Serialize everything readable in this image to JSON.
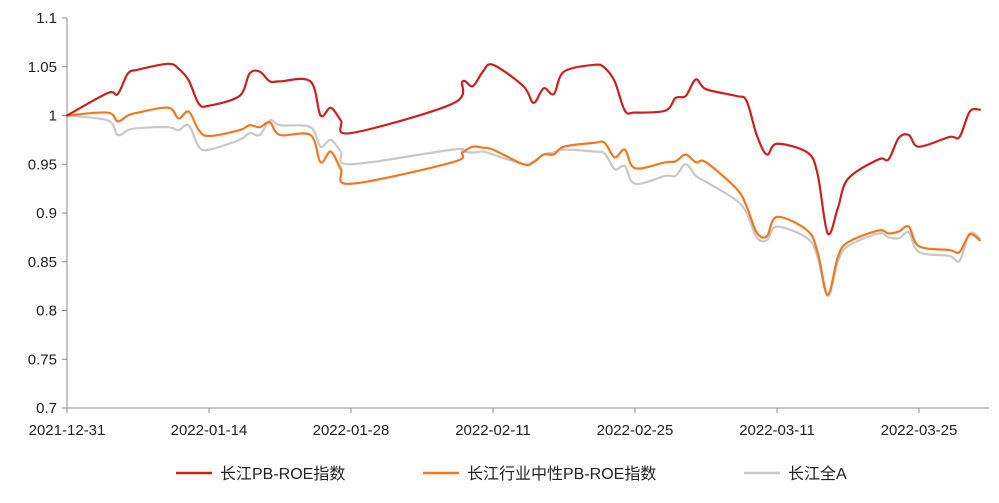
{
  "chart_data": {
    "type": "line",
    "title": "",
    "xlabel": "",
    "ylabel": "",
    "ylim": [
      0.7,
      1.1
    ],
    "y_ticks": [
      0.7,
      0.75,
      0.8,
      0.85,
      0.9,
      0.95,
      1,
      1.05,
      1.1
    ],
    "y_tick_labels": [
      "0.7",
      "0.75",
      "0.8",
      "0.85",
      "0.9",
      "0.95",
      "1",
      "1.05",
      "1.1"
    ],
    "x_ticks": [
      "2021-12-31",
      "2022-01-14",
      "2022-01-28",
      "2022-02-11",
      "2022-02-25",
      "2022-03-11",
      "2022-03-25"
    ],
    "xlim": [
      "2021-12-31",
      "2022-04-01"
    ],
    "grid": false,
    "legend_position": "bottom",
    "series": [
      {
        "name": "长江PB-ROE指数",
        "color": "#cc1f1f",
        "points": [
          [
            "2021-12-31",
            1.0
          ],
          [
            "2022-01-04",
            1.023
          ],
          [
            "2022-01-05",
            1.022
          ],
          [
            "2022-01-06",
            1.043
          ],
          [
            "2022-01-07",
            1.047
          ],
          [
            "2022-01-10",
            1.053
          ],
          [
            "2022-01-11",
            1.048
          ],
          [
            "2022-01-12",
            1.036
          ],
          [
            "2022-01-13",
            1.012
          ],
          [
            "2022-01-14",
            1.01
          ],
          [
            "2022-01-17",
            1.02
          ],
          [
            "2022-01-18",
            1.043
          ],
          [
            "2022-01-19",
            1.045
          ],
          [
            "2022-01-20",
            1.035
          ],
          [
            "2022-01-21",
            1.035
          ],
          [
            "2022-01-24",
            1.035
          ],
          [
            "2022-01-25",
            1.0
          ],
          [
            "2022-01-26",
            1.008
          ],
          [
            "2022-01-27",
            0.995
          ],
          [
            "2022-01-28",
            0.982
          ],
          [
            "2022-02-07",
            1.012
          ],
          [
            "2022-02-08",
            1.035
          ],
          [
            "2022-02-09",
            1.03
          ],
          [
            "2022-02-10",
            1.045
          ],
          [
            "2022-02-11",
            1.052
          ],
          [
            "2022-02-14",
            1.03
          ],
          [
            "2022-02-15",
            1.013
          ],
          [
            "2022-02-16",
            1.028
          ],
          [
            "2022-02-17",
            1.022
          ],
          [
            "2022-02-18",
            1.045
          ],
          [
            "2022-02-21",
            1.052
          ],
          [
            "2022-02-22",
            1.049
          ],
          [
            "2022-02-23",
            1.035
          ],
          [
            "2022-02-24",
            1.005
          ],
          [
            "2022-02-25",
            1.003
          ],
          [
            "2022-02-28",
            1.005
          ],
          [
            "2022-03-01",
            1.018
          ],
          [
            "2022-03-02",
            1.02
          ],
          [
            "2022-03-03",
            1.037
          ],
          [
            "2022-03-04",
            1.027
          ],
          [
            "2022-03-07",
            1.02
          ],
          [
            "2022-03-08",
            1.015
          ],
          [
            "2022-03-09",
            0.98
          ],
          [
            "2022-03-10",
            0.96
          ],
          [
            "2022-03-11",
            0.971
          ],
          [
            "2022-03-14",
            0.962
          ],
          [
            "2022-03-15",
            0.94
          ],
          [
            "2022-03-16",
            0.879
          ],
          [
            "2022-03-17",
            0.905
          ],
          [
            "2022-03-18",
            0.935
          ],
          [
            "2022-03-21",
            0.955
          ],
          [
            "2022-03-22",
            0.955
          ],
          [
            "2022-03-23",
            0.977
          ],
          [
            "2022-03-24",
            0.98
          ],
          [
            "2022-03-25",
            0.968
          ],
          [
            "2022-03-28",
            0.978
          ],
          [
            "2022-03-29",
            0.978
          ],
          [
            "2022-03-30",
            1.004
          ],
          [
            "2022-03-31",
            1.006
          ]
        ]
      },
      {
        "name": "长江行业中性PB-ROE指数",
        "color": "#f07820",
        "points": [
          [
            "2021-12-31",
            1.0
          ],
          [
            "2022-01-04",
            1.003
          ],
          [
            "2022-01-05",
            0.994
          ],
          [
            "2022-01-06",
            1.0
          ],
          [
            "2022-01-07",
            1.003
          ],
          [
            "2022-01-10",
            1.008
          ],
          [
            "2022-01-11",
            0.997
          ],
          [
            "2022-01-12",
            1.004
          ],
          [
            "2022-01-13",
            0.985
          ],
          [
            "2022-01-14",
            0.979
          ],
          [
            "2022-01-17",
            0.985
          ],
          [
            "2022-01-18",
            0.99
          ],
          [
            "2022-01-19",
            0.988
          ],
          [
            "2022-01-20",
            0.993
          ],
          [
            "2022-01-21",
            0.98
          ],
          [
            "2022-01-24",
            0.98
          ],
          [
            "2022-01-25",
            0.952
          ],
          [
            "2022-01-26",
            0.963
          ],
          [
            "2022-01-27",
            0.945
          ],
          [
            "2022-01-28",
            0.93
          ],
          [
            "2022-02-07",
            0.952
          ],
          [
            "2022-02-08",
            0.962
          ],
          [
            "2022-02-09",
            0.968
          ],
          [
            "2022-02-10",
            0.967
          ],
          [
            "2022-02-11",
            0.965
          ],
          [
            "2022-02-14",
            0.95
          ],
          [
            "2022-02-15",
            0.952
          ],
          [
            "2022-02-16",
            0.96
          ],
          [
            "2022-02-17",
            0.96
          ],
          [
            "2022-02-18",
            0.968
          ],
          [
            "2022-02-21",
            0.972
          ],
          [
            "2022-02-22",
            0.972
          ],
          [
            "2022-02-23",
            0.957
          ],
          [
            "2022-02-24",
            0.965
          ],
          [
            "2022-02-25",
            0.946
          ],
          [
            "2022-02-28",
            0.952
          ],
          [
            "2022-03-01",
            0.953
          ],
          [
            "2022-03-02",
            0.96
          ],
          [
            "2022-03-03",
            0.952
          ],
          [
            "2022-03-04",
            0.952
          ],
          [
            "2022-03-07",
            0.925
          ],
          [
            "2022-03-08",
            0.907
          ],
          [
            "2022-03-09",
            0.88
          ],
          [
            "2022-03-10",
            0.876
          ],
          [
            "2022-03-11",
            0.896
          ],
          [
            "2022-03-14",
            0.882
          ],
          [
            "2022-03-15",
            0.86
          ],
          [
            "2022-03-16",
            0.816
          ],
          [
            "2022-03-17",
            0.855
          ],
          [
            "2022-03-18",
            0.87
          ],
          [
            "2022-03-21",
            0.882
          ],
          [
            "2022-03-22",
            0.879
          ],
          [
            "2022-03-23",
            0.881
          ],
          [
            "2022-03-24",
            0.886
          ],
          [
            "2022-03-25",
            0.866
          ],
          [
            "2022-03-28",
            0.862
          ],
          [
            "2022-03-29",
            0.86
          ],
          [
            "2022-03-30",
            0.878
          ],
          [
            "2022-03-31",
            0.872
          ]
        ]
      },
      {
        "name": "长江全A",
        "color": "#c8c8c8",
        "points": [
          [
            "2021-12-31",
            1.0
          ],
          [
            "2022-01-04",
            0.995
          ],
          [
            "2022-01-05",
            0.98
          ],
          [
            "2022-01-06",
            0.985
          ],
          [
            "2022-01-07",
            0.987
          ],
          [
            "2022-01-10",
            0.988
          ],
          [
            "2022-01-11",
            0.985
          ],
          [
            "2022-01-12",
            0.99
          ],
          [
            "2022-01-13",
            0.968
          ],
          [
            "2022-01-14",
            0.965
          ],
          [
            "2022-01-17",
            0.975
          ],
          [
            "2022-01-18",
            0.982
          ],
          [
            "2022-01-19",
            0.98
          ],
          [
            "2022-01-20",
            0.995
          ],
          [
            "2022-01-21",
            0.99
          ],
          [
            "2022-01-24",
            0.988
          ],
          [
            "2022-01-25",
            0.968
          ],
          [
            "2022-01-26",
            0.975
          ],
          [
            "2022-01-27",
            0.963
          ],
          [
            "2022-01-28",
            0.95
          ],
          [
            "2022-02-07",
            0.965
          ],
          [
            "2022-02-08",
            0.963
          ],
          [
            "2022-02-09",
            0.962
          ],
          [
            "2022-02-10",
            0.963
          ],
          [
            "2022-02-11",
            0.96
          ],
          [
            "2022-02-14",
            0.95
          ],
          [
            "2022-02-15",
            0.953
          ],
          [
            "2022-02-16",
            0.96
          ],
          [
            "2022-02-17",
            0.962
          ],
          [
            "2022-02-18",
            0.965
          ],
          [
            "2022-02-21",
            0.963
          ],
          [
            "2022-02-22",
            0.961
          ],
          [
            "2022-02-23",
            0.945
          ],
          [
            "2022-02-24",
            0.948
          ],
          [
            "2022-02-25",
            0.93
          ],
          [
            "2022-02-28",
            0.938
          ],
          [
            "2022-03-01",
            0.938
          ],
          [
            "2022-03-02",
            0.95
          ],
          [
            "2022-03-03",
            0.938
          ],
          [
            "2022-03-04",
            0.932
          ],
          [
            "2022-03-07",
            0.913
          ],
          [
            "2022-03-08",
            0.9
          ],
          [
            "2022-03-09",
            0.875
          ],
          [
            "2022-03-10",
            0.872
          ],
          [
            "2022-03-11",
            0.886
          ],
          [
            "2022-03-14",
            0.874
          ],
          [
            "2022-03-15",
            0.855
          ],
          [
            "2022-03-16",
            0.815
          ],
          [
            "2022-03-17",
            0.85
          ],
          [
            "2022-03-18",
            0.866
          ],
          [
            "2022-03-21",
            0.879
          ],
          [
            "2022-03-22",
            0.875
          ],
          [
            "2022-03-23",
            0.874
          ],
          [
            "2022-03-24",
            0.88
          ],
          [
            "2022-03-25",
            0.86
          ],
          [
            "2022-03-28",
            0.856
          ],
          [
            "2022-03-29",
            0.851
          ],
          [
            "2022-03-30",
            0.879
          ],
          [
            "2022-03-31",
            0.874
          ]
        ]
      }
    ]
  }
}
